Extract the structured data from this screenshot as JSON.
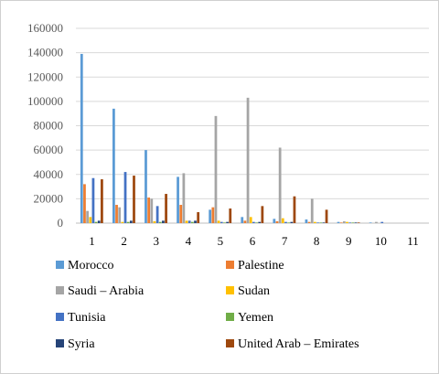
{
  "chart_data": {
    "type": "bar",
    "title": "",
    "xlabel": "",
    "ylabel": "",
    "ylim": [
      0,
      160000
    ],
    "yticks": [
      0,
      20000,
      40000,
      60000,
      80000,
      100000,
      120000,
      140000,
      160000
    ],
    "ytick_labels": [
      "0",
      "20000",
      "40000",
      "60000",
      "80000",
      "100000",
      "120000",
      "140000",
      "160000"
    ],
    "categories": [
      "1",
      "2",
      "3",
      "4",
      "5",
      "6",
      "7",
      "8",
      "9",
      "10",
      "11"
    ],
    "grid": true,
    "legend_position": "bottom",
    "series": [
      {
        "name": "Morocco",
        "color": "#5b9bd5",
        "values": [
          139000,
          94000,
          60000,
          38000,
          11000,
          5000,
          3500,
          3000,
          1000,
          500,
          0
        ]
      },
      {
        "name": "Palestine",
        "color": "#ed7d31",
        "values": [
          32000,
          15000,
          21000,
          15000,
          13000,
          2000,
          1500,
          1000,
          500,
          0,
          0
        ]
      },
      {
        "name": "Saudi – Arabia",
        "color": "#a5a5a5",
        "values": [
          10000,
          13000,
          20000,
          41000,
          88000,
          103000,
          62000,
          20000,
          1500,
          1000,
          0
        ]
      },
      {
        "name": "Sudan",
        "color": "#ffc000",
        "values": [
          5000,
          1000,
          1500,
          2000,
          2000,
          5000,
          4000,
          1000,
          1000,
          0,
          0
        ]
      },
      {
        "name": "Tunisia",
        "color": "#4472c4",
        "values": [
          37000,
          42000,
          14000,
          2000,
          1000,
          1000,
          1000,
          500,
          500,
          1000,
          0
        ]
      },
      {
        "name": "Yemen",
        "color": "#70ad47",
        "values": [
          1000,
          1000,
          1000,
          1000,
          500,
          500,
          500,
          500,
          500,
          0,
          0
        ]
      },
      {
        "name": "Syria",
        "color": "#264478",
        "values": [
          2000,
          2000,
          2000,
          2000,
          1000,
          1000,
          1000,
          500,
          500,
          0,
          0
        ]
      },
      {
        "name": "United Arab – Emirates",
        "color": "#9e480e",
        "values": [
          36000,
          39000,
          24000,
          9000,
          12000,
          14000,
          22000,
          11000,
          500,
          0,
          0
        ]
      }
    ]
  }
}
